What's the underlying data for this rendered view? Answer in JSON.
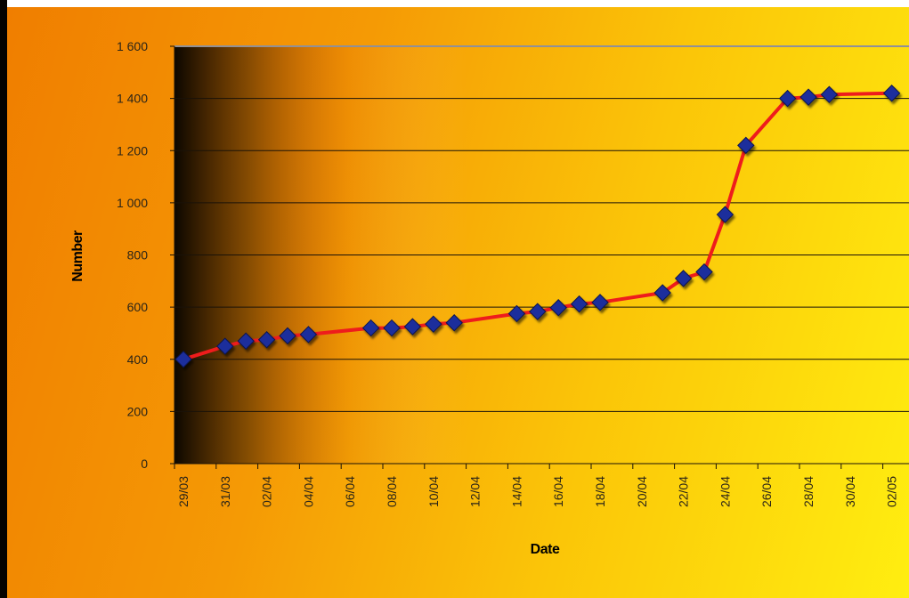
{
  "chart_data": {
    "type": "line",
    "title": "",
    "xlabel": "Date",
    "ylabel": "Number",
    "ylim": [
      0,
      1600
    ],
    "y_ticks": [
      0,
      200,
      400,
      600,
      800,
      1000,
      1200,
      1400,
      1600
    ],
    "y_tick_labels": [
      "0",
      "200",
      "400",
      "600",
      "800",
      "1 000",
      "1 200",
      "1 400",
      "1 600"
    ],
    "x_tick_labels": [
      "29/03",
      "31/03",
      "02/04",
      "04/04",
      "06/04",
      "08/04",
      "10/04",
      "12/04",
      "14/04",
      "16/04",
      "18/04",
      "20/04",
      "22/04",
      "24/04",
      "26/04",
      "28/04",
      "30/04",
      "02/05"
    ],
    "x_start": "29/03",
    "grid": true,
    "legend": "none",
    "colors": {
      "line": "#ee1c1c",
      "marker": "#1c2f9c"
    },
    "series": [
      {
        "x": [
          "29/03",
          "31/03",
          "01/04",
          "02/04",
          "03/04",
          "04/04",
          "07/04",
          "08/04",
          "09/04",
          "10/04",
          "11/04",
          "14/04",
          "15/04",
          "16/04",
          "17/04",
          "18/04",
          "21/04",
          "22/04",
          "23/04",
          "24/04",
          "25/04",
          "27/04",
          "28/04",
          "29/04",
          "02/05"
        ],
        "values": [
          400,
          450,
          470,
          475,
          490,
          495,
          520,
          520,
          525,
          535,
          540,
          575,
          583,
          598,
          612,
          618,
          655,
          710,
          735,
          955,
          1220,
          1400,
          1405,
          1415,
          1420
        ]
      }
    ]
  }
}
